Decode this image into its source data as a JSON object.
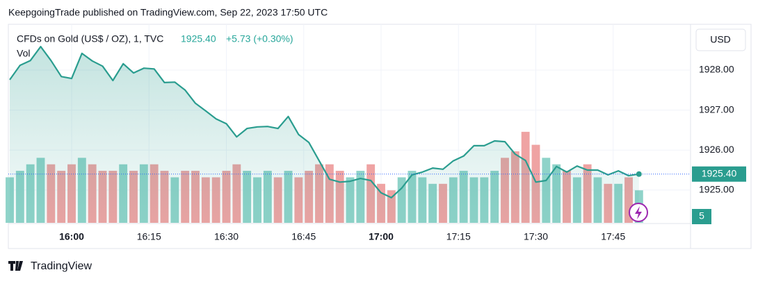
{
  "header": "KeepgoingTrade published on TradingView.com, Sep 22, 2023 17:50 UTC",
  "footer": "TradingView",
  "currency": "USD",
  "chart_data": {
    "type": "area",
    "title": "CFDs on Gold (US$ / OZ), 1, TVC",
    "last_price_label": "1925.40",
    "change_label": "+5.73 (+0.30%)",
    "volume_label": "Vol",
    "x": [
      "15:48",
      "15:50",
      "15:52",
      "15:54",
      "15:56",
      "15:58",
      "16:00",
      "16:02",
      "16:04",
      "16:06",
      "16:08",
      "16:10",
      "16:12",
      "16:14",
      "16:16",
      "16:18",
      "16:20",
      "16:22",
      "16:24",
      "16:26",
      "16:28",
      "16:30",
      "16:32",
      "16:34",
      "16:36",
      "16:38",
      "16:40",
      "16:42",
      "16:44",
      "16:46",
      "16:48",
      "16:50",
      "16:52",
      "16:54",
      "16:56",
      "16:58",
      "17:00",
      "17:02",
      "17:04",
      "17:06",
      "17:08",
      "17:10",
      "17:12",
      "17:14",
      "17:16",
      "17:18",
      "17:20",
      "17:22",
      "17:24",
      "17:26",
      "17:28",
      "17:30",
      "17:32",
      "17:34",
      "17:36",
      "17:38",
      "17:40",
      "17:42",
      "17:44",
      "17:46",
      "17:48",
      "17:50"
    ],
    "xlim": [
      "15:48",
      "18:00"
    ],
    "xticks": [
      "16:00",
      "16:15",
      "16:30",
      "16:45",
      "17:00",
      "17:15",
      "17:30",
      "17:45"
    ],
    "series": [
      {
        "name": "Price",
        "color": "#2a9d8f",
        "values": [
          1927.76,
          1928.12,
          1928.24,
          1928.59,
          1928.24,
          1927.84,
          1927.79,
          1928.42,
          1928.23,
          1928.1,
          1927.74,
          1928.16,
          1927.93,
          1928.05,
          1928.03,
          1927.69,
          1927.7,
          1927.5,
          1927.17,
          1926.98,
          1926.78,
          1926.66,
          1926.33,
          1926.54,
          1926.58,
          1926.59,
          1926.54,
          1926.84,
          1926.39,
          1926.19,
          1925.73,
          1925.27,
          1925.2,
          1925.22,
          1925.29,
          1925.24,
          1924.93,
          1924.81,
          1925.05,
          1925.38,
          1925.45,
          1925.55,
          1925.52,
          1925.73,
          1925.85,
          1926.11,
          1926.11,
          1926.23,
          1926.21,
          1925.9,
          1925.74,
          1925.2,
          1925.24,
          1925.59,
          1925.45,
          1925.6,
          1925.5,
          1925.5,
          1925.38,
          1925.48,
          1925.36,
          1925.4
        ]
      },
      {
        "name": "Vol",
        "axis": "y2",
        "values": [
          7,
          8,
          9,
          10,
          9,
          8,
          9,
          10,
          9,
          8,
          8,
          9,
          8,
          9,
          9,
          8,
          7,
          8,
          8,
          7,
          7,
          8,
          9,
          8,
          7,
          8,
          7,
          8,
          7,
          8,
          9,
          9,
          8,
          7,
          8,
          9,
          6,
          5,
          7,
          8,
          7,
          6,
          6,
          7,
          8,
          7,
          7,
          8,
          10,
          11,
          14,
          12,
          10,
          9,
          8,
          7,
          9,
          7,
          6,
          6,
          7,
          5
        ]
      }
    ],
    "ylim": [
      1924.18,
      1929.06
    ],
    "yticks": [
      {
        "value": 1925,
        "label": "1925.00"
      },
      {
        "value": 1926,
        "label": "1926.00"
      },
      {
        "value": 1927,
        "label": "1927.00"
      },
      {
        "value": 1928,
        "label": "1928.00"
      }
    ],
    "y2lim": [
      0,
      30
    ],
    "up_color": "#8fd3c9",
    "down_color": "#efa3a3"
  }
}
